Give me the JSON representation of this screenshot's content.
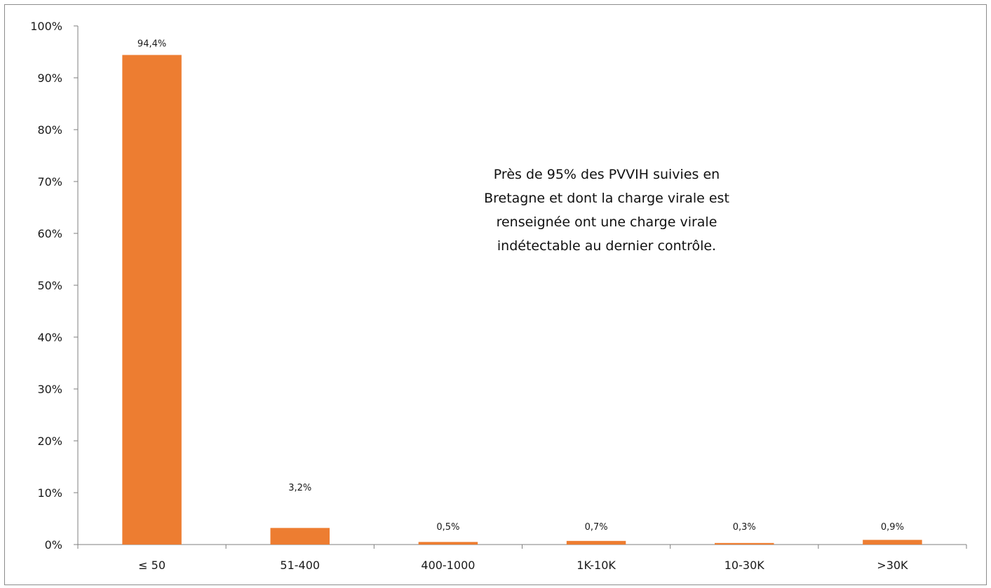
{
  "chart_data": {
    "type": "bar",
    "categories": [
      "≤ 50",
      "51-400",
      "400-1000",
      "1K-10K",
      "10-30K",
      ">30K"
    ],
    "values": [
      94.4,
      3.2,
      0.5,
      0.7,
      0.3,
      0.9
    ],
    "data_labels": [
      "94,4%",
      "3,2%",
      "0,5%",
      "0,7%",
      "0,3%",
      "0,9%"
    ],
    "y_tick_values": [
      0,
      10,
      20,
      30,
      40,
      50,
      60,
      70,
      80,
      90,
      100
    ],
    "y_tick_labels": [
      "0%",
      "10%",
      "20%",
      "30%",
      "40%",
      "50%",
      "60%",
      "70%",
      "80%",
      "90%",
      "100%"
    ],
    "ylim": [
      0,
      100
    ],
    "title": "",
    "xlabel": "",
    "ylabel": "",
    "grid": false,
    "legend": "none",
    "bar_color": "#ed7d31",
    "annotation": {
      "lines": [
        "Près de 95% des PVVIH suivies en",
        "Bretagne et dont la charge virale est",
        "renseignée ont une charge virale",
        "indétectable au dernier contrôle."
      ]
    }
  }
}
